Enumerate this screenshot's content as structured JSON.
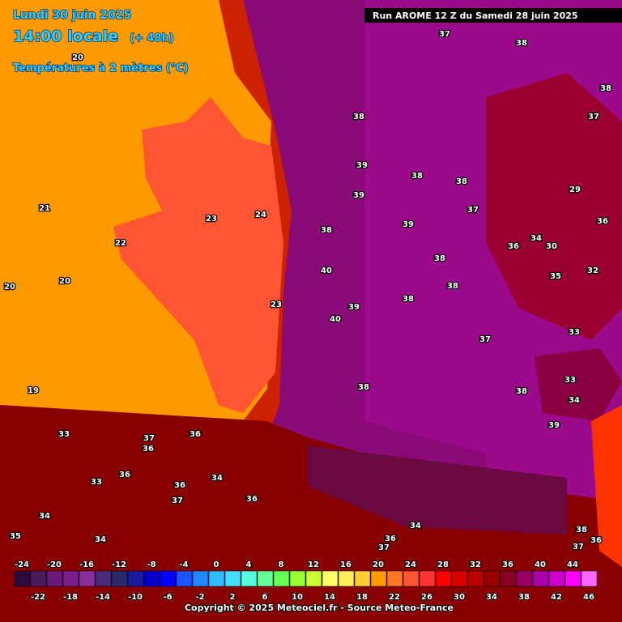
{
  "header": {
    "date": "Lundi 30 juin 2025",
    "time": "14:00 locale",
    "lead": "(+ 48h)",
    "field": "Températures à 2 mètres (°C)",
    "run": "Run AROME 12 Z du Samedi 28 juin 2025"
  },
  "map_labels": [
    37,
    38,
    38,
    37,
    38,
    39,
    38,
    38,
    39,
    37,
    39,
    38,
    40,
    38,
    38,
    38,
    39,
    40,
    37,
    33,
    38,
    38,
    39,
    33,
    34,
    35,
    34,
    30,
    32,
    29,
    36,
    36,
    20,
    21,
    22,
    23,
    24,
    20,
    20,
    19,
    23,
    33,
    37,
    36,
    36,
    36,
    33,
    36,
    34,
    37,
    36,
    34,
    35,
    34,
    36,
    37,
    34,
    38,
    36,
    37
  ],
  "scale": {
    "values": [
      -24,
      -22,
      -20,
      -18,
      -16,
      -14,
      -12,
      -10,
      -8,
      -6,
      -4,
      -2,
      0,
      2,
      4,
      6,
      8,
      10,
      12,
      14,
      16,
      18,
      20,
      22,
      24,
      26,
      28,
      30,
      32,
      34,
      36,
      38,
      40,
      42,
      44,
      46
    ],
    "colors": [
      "#2d0a3d",
      "#4b1a5a",
      "#6a1a78",
      "#7a1e8a",
      "#8a2d9a",
      "#4a2a7a",
      "#2a2a6a",
      "#1a1aa0",
      "#0000cc",
      "#0000ff",
      "#1a55ff",
      "#2288ff",
      "#33bbff",
      "#44ddff",
      "#55ffdd",
      "#66ff99",
      "#66ff55",
      "#99ff33",
      "#ccff33",
      "#ffff66",
      "#ffee55",
      "#ffcc33",
      "#ff9900",
      "#ff7722",
      "#ff5533",
      "#ff3333",
      "#ff0000",
      "#dd0000",
      "#bb0000",
      "#990000",
      "#880022",
      "#990066",
      "#aa00aa",
      "#cc00cc",
      "#ff00ff",
      "#ff66ff"
    ]
  },
  "footer": "Copyright © 2025 Meteociel.fr - Source Meteo-France"
}
